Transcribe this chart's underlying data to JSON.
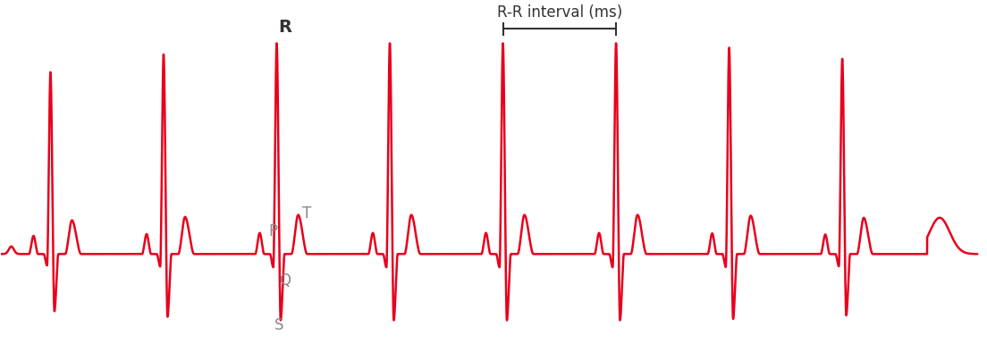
{
  "line_color": "#e8001c",
  "background_color": "#ffffff",
  "line_width": 1.8,
  "label_R": {
    "text": "R",
    "fontsize": 14,
    "fontweight": "bold",
    "color": "#333333"
  },
  "label_P": {
    "text": "P",
    "fontsize": 12,
    "fontweight": "normal",
    "color": "#888888"
  },
  "label_Q": {
    "text": "Q",
    "fontsize": 12,
    "fontweight": "normal",
    "color": "#888888"
  },
  "label_S": {
    "text": "S",
    "fontsize": 12,
    "fontweight": "normal",
    "color": "#888888"
  },
  "label_T": {
    "text": "T",
    "fontsize": 12,
    "fontweight": "normal",
    "color": "#888888"
  },
  "rr_label_text": "R-R interval (ms)",
  "rr_label_fontsize": 12,
  "rr_label_color": "#333333",
  "beat_period": 1.35,
  "num_beats": 8,
  "r_peak_height": 3.5,
  "s_depth": -1.1,
  "p_height": 0.35,
  "t_height": 0.65,
  "q_depth": -0.22,
  "ylim_min": -1.4,
  "ylim_max": 3.9,
  "xlim_min": 0.0,
  "xlim_max": 11.0,
  "annotated_beat_idx": 2,
  "rr_beat1_idx": 4,
  "rr_beat2_idx": 5
}
